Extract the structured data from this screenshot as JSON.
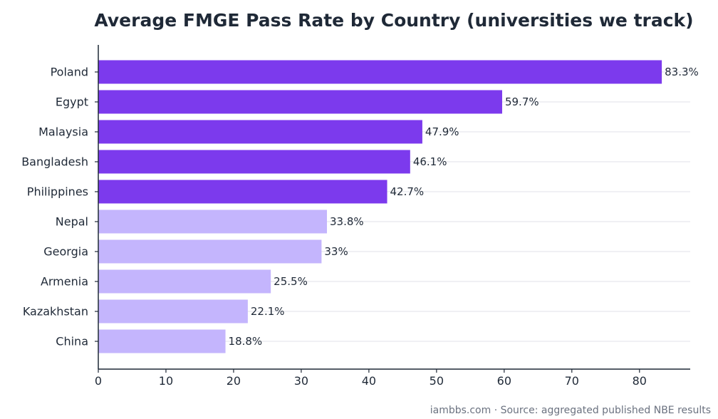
{
  "footer": {
    "source": "iambbs.com · Source: aggregated published NBE results"
  },
  "colors": {
    "highlight": "#7c3aed",
    "muted": "#c4b5fd",
    "axis": "#1f2937",
    "grid": "#ececf0",
    "text": "#1f2937"
  },
  "chart_data": {
    "type": "bar",
    "orientation": "horizontal",
    "title": "Average FMGE Pass Rate by Country (universities we track)",
    "xlabel": "",
    "ylabel": "",
    "categories": [
      "Poland",
      "Egypt",
      "Malaysia",
      "Bangladesh",
      "Philippines",
      "Nepal",
      "Georgia",
      "Armenia",
      "Kazakhstan",
      "China"
    ],
    "values": [
      83.3,
      59.7,
      47.9,
      46.1,
      42.7,
      33.8,
      33,
      25.5,
      22.1,
      18.8
    ],
    "value_labels": [
      "83.3%",
      "59.7%",
      "47.9%",
      "46.1%",
      "42.7%",
      "33.8%",
      "33%",
      "25.5%",
      "22.1%",
      "18.8%"
    ],
    "highlighted": [
      true,
      true,
      true,
      true,
      true,
      false,
      false,
      false,
      false,
      false
    ],
    "xlim": [
      0,
      87.5
    ],
    "xticks": [
      0,
      10,
      20,
      30,
      40,
      50,
      60,
      70,
      80
    ],
    "grid": "horizontal lines at each category",
    "legend": "none"
  }
}
